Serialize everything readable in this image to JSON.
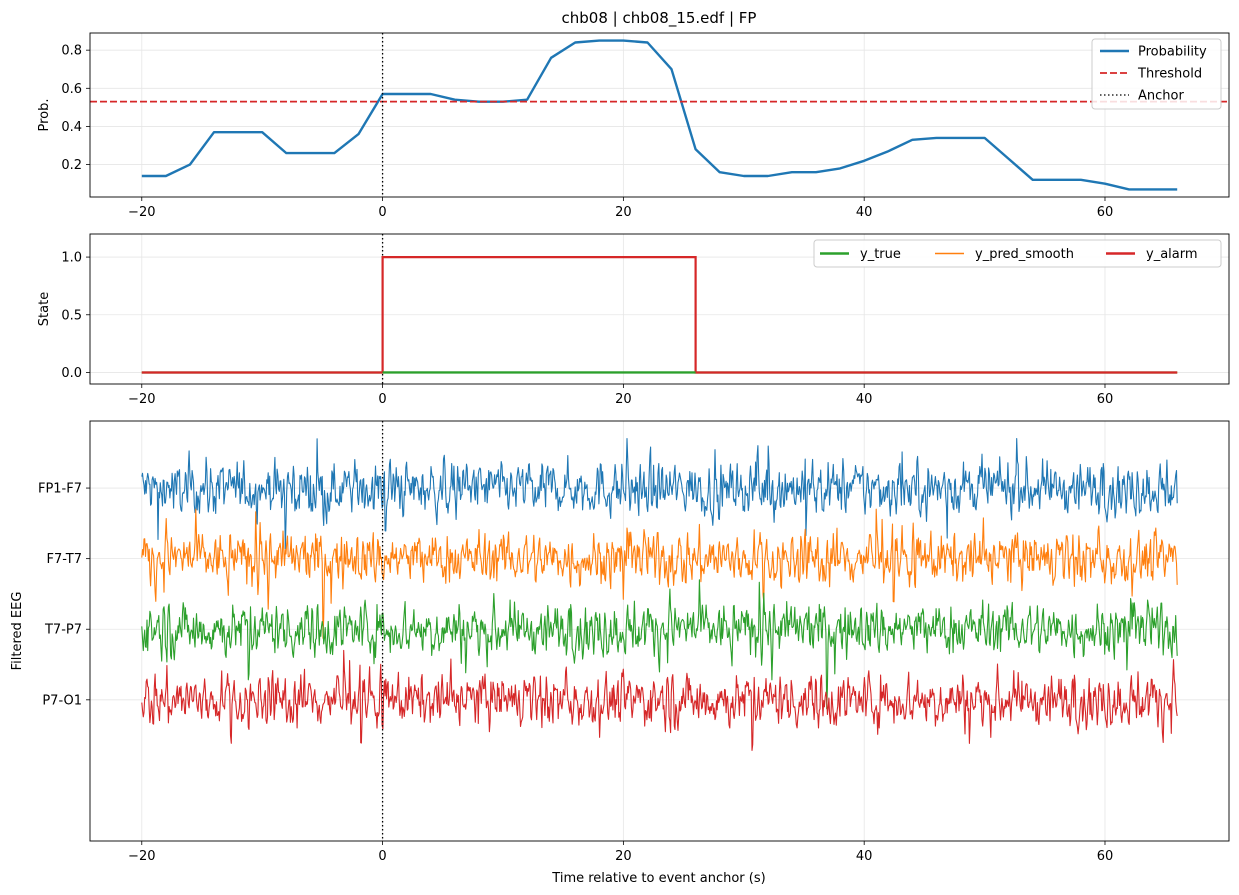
{
  "figure": {
    "title": "chb08 | chb08_15.edf | FP",
    "xlabel": "Time relative to event anchor (s)"
  },
  "colors": {
    "probability": "#1f77b4",
    "threshold": "#d62728",
    "anchor": "#000000",
    "y_true": "#2ca02c",
    "y_pred_smooth": "#ff7f0e",
    "y_alarm": "#d62728",
    "eeg": [
      "#1f77b4",
      "#ff7f0e",
      "#2ca02c",
      "#d62728"
    ]
  },
  "chart_data": [
    {
      "type": "line",
      "ylabel": "Prob.",
      "xlim": [
        -24.3,
        70.3
      ],
      "ylim": [
        0.03,
        0.89
      ],
      "xticks": [
        -20,
        0,
        20,
        40,
        60
      ],
      "yticks": [
        0.2,
        0.4,
        0.6,
        0.8
      ],
      "ytick_labels": [
        "0.2",
        "0.4",
        "0.6",
        "0.8"
      ],
      "grid": true,
      "legend": {
        "placement": "top-right",
        "entries": [
          {
            "label": "Probability",
            "style": "solid",
            "color": "#1f77b4"
          },
          {
            "label": "Threshold",
            "style": "dashed",
            "color": "#d62728"
          },
          {
            "label": "Anchor",
            "style": "dotted",
            "color": "#000000"
          }
        ]
      },
      "series": [
        {
          "name": "Probability",
          "x": [
            -20,
            -18,
            -16,
            -14,
            -12,
            -10,
            -8,
            -6,
            -4,
            -2,
            0,
            2,
            4,
            6,
            8,
            10,
            12,
            14,
            16,
            18,
            20,
            22,
            24,
            26,
            28,
            30,
            32,
            34,
            36,
            38,
            40,
            42,
            44,
            46,
            48,
            50,
            52,
            54,
            56,
            58,
            60,
            62,
            64,
            66
          ],
          "y": [
            0.14,
            0.14,
            0.2,
            0.37,
            0.37,
            0.37,
            0.26,
            0.26,
            0.26,
            0.36,
            0.57,
            0.57,
            0.57,
            0.54,
            0.53,
            0.53,
            0.54,
            0.76,
            0.84,
            0.85,
            0.85,
            0.84,
            0.7,
            0.28,
            0.16,
            0.14,
            0.14,
            0.16,
            0.16,
            0.18,
            0.22,
            0.27,
            0.33,
            0.34,
            0.34,
            0.34,
            0.23,
            0.12,
            0.12,
            0.12,
            0.1,
            0.07,
            0.07,
            0.07
          ]
        }
      ],
      "threshold": 0.53,
      "anchor_x": 0
    },
    {
      "type": "line",
      "ylabel": "State",
      "xlim": [
        -24.3,
        70.3
      ],
      "ylim": [
        -0.1,
        1.2
      ],
      "xticks": [
        -20,
        0,
        20,
        40,
        60
      ],
      "yticks": [
        0.0,
        0.5,
        1.0
      ],
      "ytick_labels": [
        "0.0",
        "0.5",
        "1.0"
      ],
      "grid": true,
      "legend": {
        "placement": "top-right",
        "entries": [
          {
            "label": "y_true",
            "color": "#2ca02c"
          },
          {
            "label": "y_pred_smooth",
            "color": "#ff7f0e"
          },
          {
            "label": "y_alarm",
            "color": "#d62728"
          }
        ]
      },
      "series": [
        {
          "name": "y_true",
          "x": [
            -20,
            66
          ],
          "y": [
            0,
            0
          ]
        },
        {
          "name": "y_pred_smooth",
          "x": [
            -20,
            0,
            0,
            26,
            26,
            66
          ],
          "y": [
            0,
            0,
            1,
            1,
            0,
            0
          ]
        },
        {
          "name": "y_alarm",
          "x": [
            -20,
            0,
            0,
            26,
            26,
            66
          ],
          "y": [
            0,
            0,
            1,
            1,
            0,
            0
          ]
        }
      ],
      "anchor_x": 0
    },
    {
      "type": "line",
      "ylabel": "Filtered EEG",
      "xlim": [
        -24.3,
        70.3
      ],
      "ylim": [
        -5.0,
        0.95
      ],
      "xticks": [
        -20,
        0,
        20,
        40,
        60
      ],
      "yticks": [
        0,
        -1,
        -2,
        -3
      ],
      "ytick_labels": [
        "FP1-F7",
        "F7-T7",
        "T7-P7",
        "P7-O1"
      ],
      "grid": true,
      "channels": [
        "FP1-F7",
        "F7-T7",
        "T7-P7",
        "P7-O1"
      ],
      "channel_offsets": [
        0,
        -1,
        -2,
        -3
      ],
      "signal_x_range": [
        -20,
        66
      ],
      "signal_amplitude_range": [
        -1.2,
        0.7
      ],
      "anchor_x": 0
    }
  ]
}
